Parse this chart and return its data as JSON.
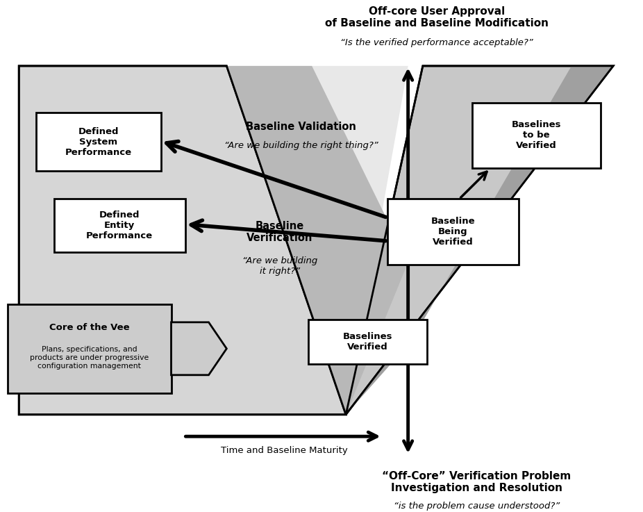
{
  "bg_color": "#ffffff",
  "box_gray": "#cccccc",
  "light_gray": "#d0d0d0",
  "mid_gray": "#b0b0b0",
  "dark_gray": "#909090",
  "figsize": [
    9.26,
    7.37
  ],
  "dpi": 100,
  "top_title": "Off-core User Approval\nof Baseline and Baseline Modification",
  "top_title_italic": "“Is the verified performance acceptable?”",
  "bottom_title": "“Off-Core” Verification Problem\nInvestigation and Resolution",
  "bottom_title_italic": "“is the problem cause understood?”",
  "time_label": "Time and Baseline Maturity",
  "box1_text": "Defined\nSystem\nPerformance",
  "box2_text": "Defined\nEntity\nPerformance",
  "box3_text": "Baseline\nBeing\nVerified",
  "box4_text": "Baselines\nto be\nVerified",
  "box5_text": "Baselines\nVerified",
  "core_title": "Core of the Vee",
  "core_text": "Plans, specifications, and\nproducts are under progressive\nconfiguration management",
  "validation_bold": "Baseline Validation",
  "validation_italic": "“Are we building the right thing?”",
  "verif_bold": "Baseline\nVerification",
  "verif_italic": "“Are we building\nit right?”"
}
